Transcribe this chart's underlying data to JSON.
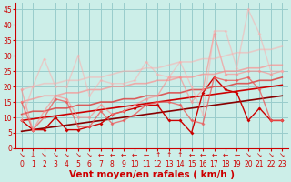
{
  "xlabel": "Vent moyen/en rafales ( km/h )",
  "bg_color": "#cceee8",
  "grid_color": "#99cccc",
  "x": [
    0,
    1,
    2,
    3,
    4,
    5,
    6,
    7,
    8,
    9,
    10,
    11,
    12,
    13,
    14,
    15,
    16,
    17,
    18,
    19,
    20,
    21,
    22,
    23
  ],
  "lines": [
    {
      "y": [
        5.5,
        6.0,
        6.5,
        7.0,
        7.5,
        8.0,
        8.5,
        9.0,
        9.5,
        10.0,
        10.5,
        11.0,
        11.5,
        12.0,
        12.5,
        13.0,
        13.5,
        14.0,
        14.5,
        15.0,
        15.5,
        16.0,
        16.5,
        17.0
      ],
      "color": "#880000",
      "lw": 1.2,
      "marker": null,
      "ms": 0,
      "alpha": 1.0
    },
    {
      "y": [
        9.0,
        9.5,
        10.0,
        10.5,
        11.0,
        11.5,
        12.0,
        12.5,
        13.0,
        13.5,
        14.0,
        14.5,
        15.0,
        15.5,
        16.0,
        16.5,
        17.0,
        17.5,
        18.0,
        18.5,
        19.0,
        19.5,
        20.0,
        20.5
      ],
      "color": "#cc0000",
      "lw": 1.2,
      "marker": null,
      "ms": 0,
      "alpha": 1.0
    },
    {
      "y": [
        9,
        6,
        6,
        10,
        6,
        6,
        7,
        8,
        11,
        12,
        13,
        14,
        14,
        9,
        9,
        5,
        18,
        23,
        19,
        18,
        9,
        13,
        9,
        9
      ],
      "color": "#cc0000",
      "lw": 1.0,
      "marker": "D",
      "ms": 2.0,
      "alpha": 1.0
    },
    {
      "y": [
        11,
        12,
        12,
        13,
        13,
        14,
        14,
        15,
        15,
        16,
        16,
        17,
        17,
        18,
        18,
        19,
        19,
        20,
        20,
        21,
        21,
        22,
        22,
        23
      ],
      "color": "#dd4444",
      "lw": 1.2,
      "marker": null,
      "ms": 0,
      "alpha": 0.85
    },
    {
      "y": [
        15,
        6,
        10,
        16,
        15,
        7,
        7,
        12,
        8,
        9,
        11,
        14,
        15,
        15,
        14,
        9,
        8,
        23,
        22,
        22,
        23,
        19,
        9,
        9
      ],
      "color": "#ee5555",
      "lw": 1.0,
      "marker": "D",
      "ms": 2.0,
      "alpha": 0.75
    },
    {
      "y": [
        15,
        16,
        17,
        17,
        18,
        18,
        19,
        19,
        20,
        20,
        21,
        21,
        22,
        22,
        23,
        23,
        24,
        24,
        25,
        25,
        26,
        26,
        27,
        27
      ],
      "color": "#ff8888",
      "lw": 1.2,
      "marker": null,
      "ms": 0,
      "alpha": 0.65
    },
    {
      "y": [
        19,
        6,
        12,
        17,
        16,
        10,
        10,
        14,
        11,
        12,
        14,
        16,
        17,
        23,
        23,
        15,
        19,
        37,
        24,
        24,
        25,
        25,
        24,
        25
      ],
      "color": "#ff8888",
      "lw": 1.0,
      "marker": "D",
      "ms": 2.0,
      "alpha": 0.6
    },
    {
      "y": [
        19,
        20,
        21,
        21,
        22,
        22,
        23,
        23,
        24,
        25,
        25,
        26,
        26,
        27,
        28,
        28,
        29,
        29,
        30,
        31,
        31,
        32,
        32,
        33
      ],
      "color": "#ffaaaa",
      "lw": 1.2,
      "marker": null,
      "ms": 0,
      "alpha": 0.5
    },
    {
      "y": [
        9,
        20,
        29,
        20,
        20,
        30,
        17,
        22,
        21,
        21,
        22,
        28,
        24,
        23,
        28,
        20,
        11,
        38,
        38,
        26,
        45,
        37,
        25,
        25
      ],
      "color": "#ffaaaa",
      "lw": 1.0,
      "marker": "D",
      "ms": 2.0,
      "alpha": 0.5
    }
  ],
  "ylim": [
    0,
    47
  ],
  "xlim": [
    -0.5,
    23.5
  ],
  "yticks": [
    0,
    5,
    10,
    15,
    20,
    25,
    30,
    35,
    40,
    45
  ],
  "xticks": [
    0,
    1,
    2,
    3,
    4,
    5,
    6,
    7,
    8,
    9,
    10,
    11,
    12,
    13,
    14,
    15,
    16,
    17,
    18,
    19,
    20,
    21,
    22,
    23
  ],
  "arrows": [
    "↘",
    "↓",
    "↘",
    "↘",
    "↘",
    "↘",
    "↘",
    "←",
    "←",
    "←",
    "←",
    "←",
    "↑",
    "↑",
    "↑",
    "←",
    "←",
    "←",
    "←",
    "←",
    "↘",
    "↘",
    "↘",
    "↘"
  ],
  "tick_color": "#cc0000",
  "tick_fontsize": 5.5,
  "xlabel_fontsize": 7.5
}
